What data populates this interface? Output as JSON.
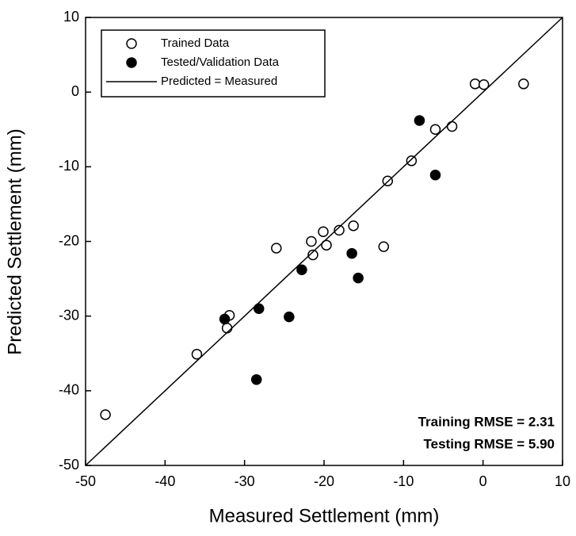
{
  "chart_data": {
    "type": "scatter",
    "xlabel": "Measured Settlement (mm)",
    "ylabel": "Predicted Settlement (mm)",
    "xlim": [
      -50,
      10
    ],
    "ylim": [
      -50,
      10
    ],
    "xticks": [
      -50,
      -40,
      -30,
      -20,
      -10,
      0,
      10
    ],
    "yticks": [
      -50,
      -40,
      -30,
      -20,
      -10,
      0,
      10
    ],
    "legend": "upper left",
    "series": [
      {
        "name": "Trained Data",
        "color": "#000000",
        "marker": "open",
        "x": [
          -47.5,
          -36.0,
          -31.9,
          -32.2,
          -26.0,
          -21.6,
          -21.4,
          -20.1,
          -19.7,
          -18.1,
          -16.3,
          -12.5,
          -12.0,
          -9.0,
          -6.0,
          -3.9,
          -1.0,
          0.1,
          5.1
        ],
        "values": [
          -43.2,
          -35.1,
          -29.9,
          -31.6,
          -20.9,
          -20.0,
          -21.8,
          -18.7,
          -20.5,
          -18.5,
          -17.9,
          -20.7,
          -11.9,
          -9.2,
          -5.0,
          -4.6,
          1.1,
          1.0,
          1.1
        ]
      },
      {
        "name": "Tested/Validation Data",
        "color": "#000000",
        "marker": "filled",
        "x": [
          -32.5,
          -28.2,
          -22.8,
          -24.4,
          -28.5,
          -16.5,
          -15.7,
          -8.0,
          -6.0
        ],
        "values": [
          -30.4,
          -29.0,
          -23.8,
          -30.1,
          -38.5,
          -21.6,
          -24.9,
          -3.8,
          -11.1
        ]
      },
      {
        "name": "Predicted = Measured",
        "color": "#000000",
        "type": "line",
        "x": [
          -50,
          10
        ],
        "values": [
          -50,
          10
        ]
      }
    ],
    "annotations": [
      "Training RMSE = 2.31",
      "Testing RMSE = 5.90"
    ]
  }
}
